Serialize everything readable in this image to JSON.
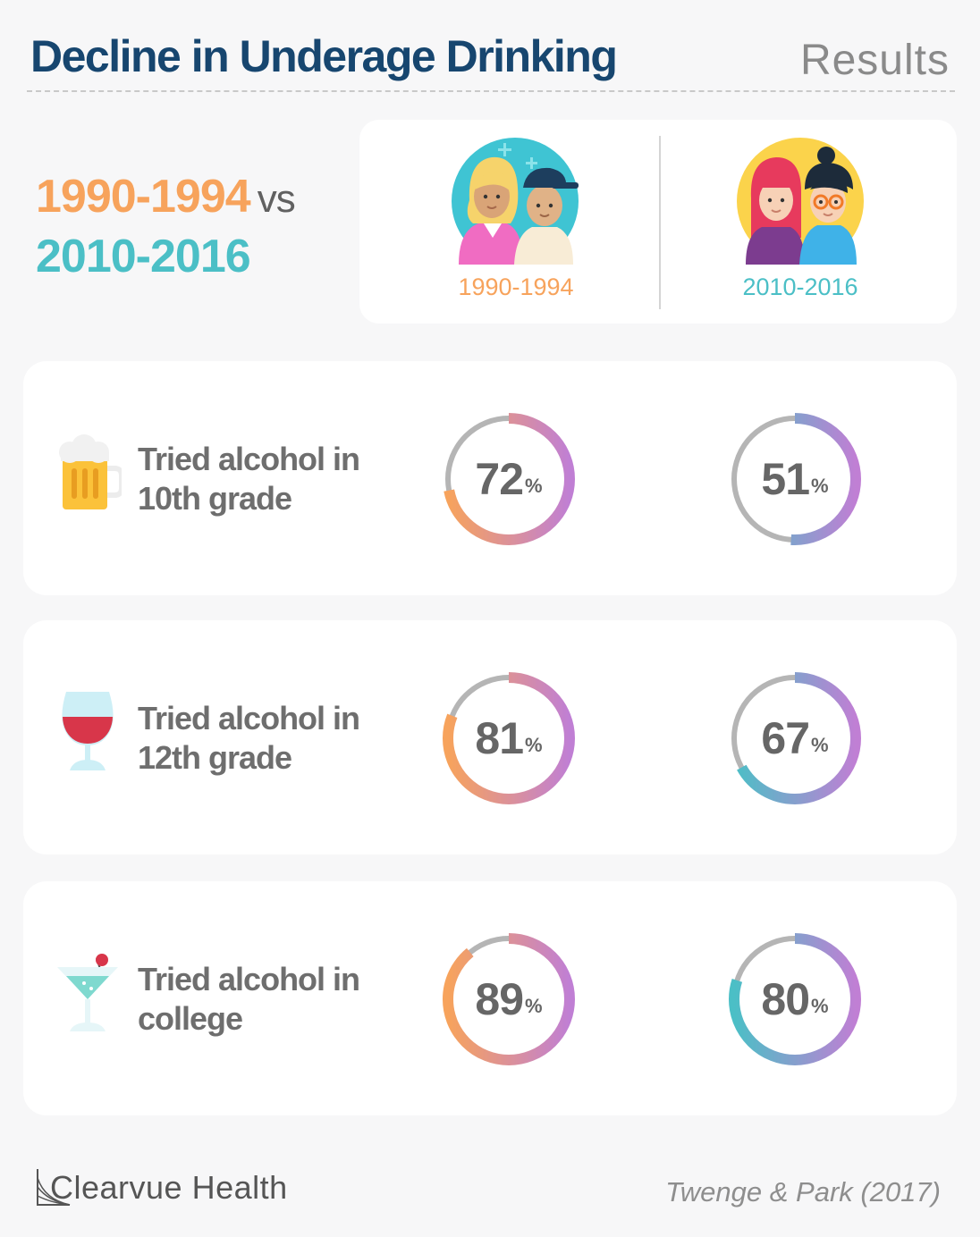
{
  "header": {
    "title": "Decline in Underage Drinking",
    "subtitle": "Results"
  },
  "comparison": {
    "period_a": "1990-1994",
    "vs": "vs",
    "period_b": "2010-2016"
  },
  "people": {
    "label_a": "1990-1994",
    "label_b": "2010-2016"
  },
  "colors": {
    "title": "#17466f",
    "period_a": "#f7a35c",
    "period_b": "#4bbfc6",
    "ring_track": "#b5b5b5",
    "ring_end": "#c07fd4"
  },
  "chart_data": {
    "type": "donut",
    "periods": [
      "1990-1994",
      "2010-2016"
    ],
    "rows": [
      {
        "line1": "Tried alcohol in",
        "line2": "10th grade",
        "icon": "beer-mug-icon",
        "values": [
          72,
          51
        ],
        "value_labels": [
          "72",
          "51"
        ]
      },
      {
        "line1": "Tried alcohol in",
        "line2": "12th grade",
        "icon": "wine-glass-icon",
        "values": [
          81,
          67
        ],
        "value_labels": [
          "81",
          "67"
        ]
      },
      {
        "line1": "Tried alcohol in",
        "line2": "college",
        "icon": "cocktail-glass-icon",
        "values": [
          89,
          80
        ],
        "value_labels": [
          "89",
          "80"
        ]
      }
    ],
    "unit": "%",
    "range": [
      0,
      100
    ]
  },
  "footer": {
    "logo": "Clearvue Health",
    "source": "Twenge & Park (2017)"
  }
}
